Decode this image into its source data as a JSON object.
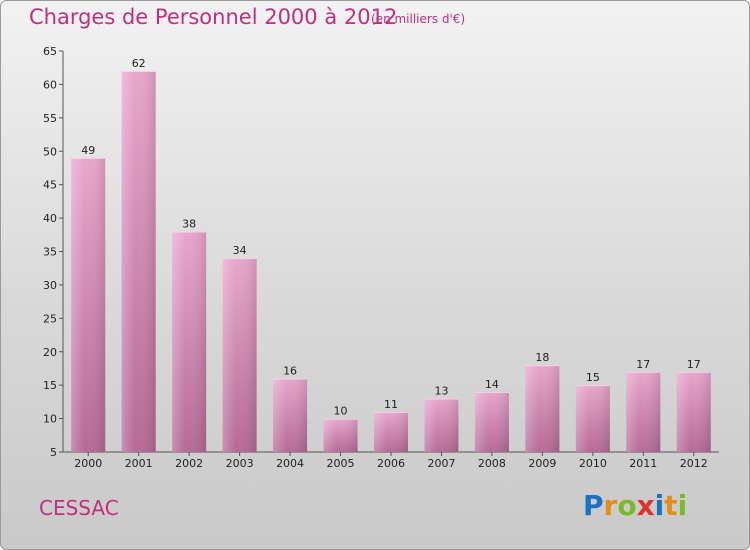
{
  "header": {
    "title": "Charges de Personnel 2000 à 2012",
    "subtitle": "(en milliers d'€)"
  },
  "footer": {
    "town": "CESSAC",
    "logo": [
      "P",
      "r",
      "o",
      "x",
      "i",
      "t",
      "i"
    ]
  },
  "colors": {
    "title": "#c0307a",
    "bar_top": "#e8a6cc",
    "bar_bottom": "#b56a95",
    "logo": [
      "#1a72c4",
      "#e58c1b",
      "#7ab929",
      "#e0312b",
      "#1a72c4",
      "#e58c1b",
      "#7ab929"
    ]
  },
  "chart_data": {
    "type": "bar",
    "title": "Charges de Personnel 2000 à 2012",
    "subtitle": "(en milliers d'€)",
    "categories": [
      "2000",
      "2001",
      "2002",
      "2003",
      "2004",
      "2005",
      "2006",
      "2007",
      "2008",
      "2009",
      "2010",
      "2011",
      "2012"
    ],
    "values": [
      49,
      62,
      38,
      34,
      16,
      10,
      11,
      13,
      14,
      18,
      15,
      17,
      17
    ],
    "ylim": [
      5,
      65
    ],
    "yticks": [
      5,
      10,
      15,
      20,
      25,
      30,
      35,
      40,
      45,
      50,
      55,
      60,
      65
    ],
    "grid": false,
    "xlabel": "",
    "ylabel": ""
  }
}
